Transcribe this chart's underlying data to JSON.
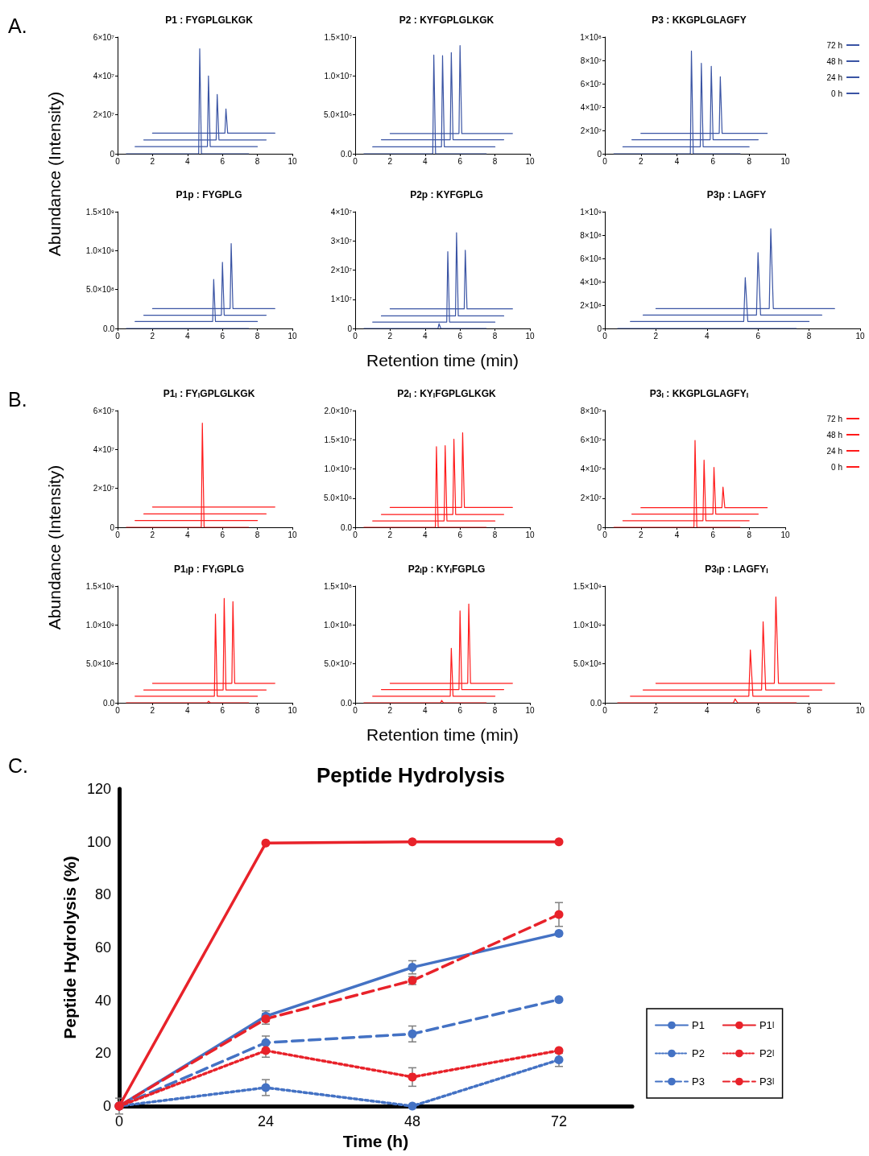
{
  "chart_data": [
    {
      "type": "line",
      "title": "P1 : FYGPLGLKGK",
      "ylabel": "Abundance (Intensity)",
      "annotations": [
        "A."
      ],
      "xlim": [
        0,
        10
      ],
      "xticks": [
        0,
        2,
        4,
        6,
        8,
        10
      ],
      "ylim": [
        0,
        60000000.0
      ],
      "yticks": [
        0,
        {
          "value": 20000000.0,
          "label": "2×10⁷"
        },
        {
          "value": 40000000.0,
          "label": "4×10⁷"
        },
        {
          "value": 60000000.0,
          "label": "6×10⁷"
        }
      ],
      "grid": false,
      "legend": false,
      "marker": "none",
      "line_style": "solid",
      "series": [
        {
          "color": "#3a54a4",
          "x": [
            0.5,
            4.64,
            4.7,
            4.8,
            7.5
          ],
          "values": [
            0,
            0,
            54000000.0,
            0,
            0
          ]
        },
        {
          "color": "#3a54a4",
          "x": [
            1,
            5.14,
            5.2,
            5.3,
            8
          ],
          "values": [
            3700000.0,
            3700000.0,
            40000000.0,
            3700000.0,
            3700000.0
          ]
        },
        {
          "color": "#3a54a4",
          "x": [
            1.5,
            5.64,
            5.7,
            5.8,
            8.5
          ],
          "values": [
            7100000.0,
            7100000.0,
            30500000.0,
            7100000.0,
            7100000.0
          ]
        },
        {
          "color": "#3a54a4",
          "x": [
            2,
            6.14,
            6.2,
            6.3,
            9
          ],
          "values": [
            10600000.0,
            10600000.0,
            23000000.0,
            10600000.0,
            10600000.0
          ]
        }
      ]
    },
    {
      "type": "line",
      "title": "P2 : KYFGPLGLKGK",
      "xlim": [
        0,
        10
      ],
      "xticks": [
        0,
        2,
        4,
        6,
        8,
        10
      ],
      "ylim": [
        0,
        15000000.0
      ],
      "yticks": [
        {
          "value": 0,
          "label": "0.0"
        },
        {
          "value": 5000000.0,
          "label": "5.0×10⁶"
        },
        {
          "value": 10000000.0,
          "label": "1.0×10⁷"
        },
        {
          "value": 15000000.0,
          "label": "1.5×10⁷"
        }
      ],
      "grid": false,
      "legend": false,
      "marker": "none",
      "line_style": "solid",
      "series": [
        {
          "color": "#3a54a4",
          "x": [
            0.5,
            4.44,
            4.5,
            4.6,
            7.5
          ],
          "values": [
            0,
            0,
            12700000.0,
            0,
            0
          ]
        },
        {
          "color": "#3a54a4",
          "x": [
            1,
            4.94,
            5,
            5.1,
            8
          ],
          "values": [
            900000.0,
            900000.0,
            12600000.0,
            900000.0,
            900000.0
          ]
        },
        {
          "color": "#3a54a4",
          "x": [
            1.5,
            5.44,
            5.5,
            5.6,
            8.5
          ],
          "values": [
            1800000.0,
            1800000.0,
            13000000.0,
            1800000.0,
            1800000.0
          ]
        },
        {
          "color": "#3a54a4",
          "x": [
            2,
            5.94,
            6,
            6.1,
            9
          ],
          "values": [
            2600000.0,
            2600000.0,
            13900000.0,
            2600000.0,
            2600000.0
          ]
        }
      ]
    },
    {
      "type": "line",
      "title": "P3 : KKGPLGLAGFY",
      "xlim": [
        0,
        10
      ],
      "xticks": [
        0,
        2,
        4,
        6,
        8,
        10
      ],
      "ylim": [
        0,
        100000000.0
      ],
      "yticks": [
        0,
        {
          "value": 20000000.0,
          "label": "2×10⁷"
        },
        {
          "value": 40000000.0,
          "label": "4×10⁷"
        },
        {
          "value": 60000000.0,
          "label": "6×10⁷"
        },
        {
          "value": 80000000.0,
          "label": "8×10⁷"
        },
        {
          "value": 100000000.0,
          "label": "1×10⁸"
        }
      ],
      "grid": false,
      "legend": "right",
      "marker": "none",
      "line_style": "solid",
      "series": [
        {
          "name": "0 h",
          "color": "#3a54a4",
          "x": [
            0.5,
            4.74,
            4.8,
            4.9,
            7.5
          ],
          "values": [
            0,
            0,
            88000000.0,
            0,
            0
          ]
        },
        {
          "name": "24 h",
          "color": "#3a54a4",
          "x": [
            1,
            5.29,
            5.35,
            5.45,
            8
          ],
          "values": [
            6000000.0,
            6000000.0,
            77500000.0,
            6000000.0,
            6000000.0
          ]
        },
        {
          "name": "48 h",
          "color": "#3a54a4",
          "x": [
            1.5,
            5.84,
            5.9,
            6,
            8.5
          ],
          "values": [
            12000000.0,
            12000000.0,
            75000000.0,
            12000000.0,
            12000000.0
          ]
        },
        {
          "name": "72 h",
          "color": "#3a54a4",
          "x": [
            2,
            6.34,
            6.4,
            6.5,
            9
          ],
          "values": [
            17500000.0,
            17500000.0,
            66000000.0,
            17500000.0,
            17500000.0
          ]
        }
      ]
    },
    {
      "type": "line",
      "title": "P1p : FYGPLG",
      "xlim": [
        0,
        10
      ],
      "xticks": [
        0,
        2,
        4,
        6,
        8,
        10
      ],
      "ylim": [
        0,
        1500000000.0
      ],
      "yticks": [
        {
          "value": 0,
          "label": "0.0"
        },
        {
          "value": 500000000.0,
          "label": "5.0×10⁸"
        },
        {
          "value": 1000000000.0,
          "label": "1.0×10⁹"
        },
        {
          "value": 1500000000.0,
          "label": "1.5×10⁹"
        }
      ],
      "grid": false,
      "legend": false,
      "marker": "none",
      "line_style": "solid",
      "series": [
        {
          "color": "#3a54a4",
          "x": [
            0.5,
            7.5
          ],
          "values": [
            0,
            0
          ]
        },
        {
          "color": "#3a54a4",
          "x": [
            1,
            5.44,
            5.5,
            5.6,
            8
          ],
          "values": [
            90000000.0,
            90000000.0,
            630000000.0,
            90000000.0,
            90000000.0
          ]
        },
        {
          "color": "#3a54a4",
          "x": [
            1.5,
            5.94,
            6,
            6.1,
            8.5
          ],
          "values": [
            170000000.0,
            170000000.0,
            850000000.0,
            170000000.0,
            170000000.0
          ]
        },
        {
          "color": "#3a54a4",
          "x": [
            2,
            6.44,
            6.5,
            6.6,
            9
          ],
          "values": [
            255000000.0,
            255000000.0,
            1090000000.0,
            255000000.0,
            255000000.0
          ]
        }
      ]
    },
    {
      "type": "line",
      "title": "P2p : KYFGPLG",
      "xlabel": "Retention time (min)",
      "xlim": [
        0,
        10
      ],
      "xticks": [
        0,
        2,
        4,
        6,
        8,
        10
      ],
      "ylim": [
        0,
        40000000.0
      ],
      "yticks": [
        0,
        {
          "value": 10000000.0,
          "label": "1×10⁷"
        },
        {
          "value": 20000000.0,
          "label": "2×10⁷"
        },
        {
          "value": 30000000.0,
          "label": "3×10⁷"
        },
        {
          "value": 40000000.0,
          "label": "4×10⁷"
        }
      ],
      "grid": false,
      "legend": false,
      "marker": "none",
      "line_style": "solid",
      "series": [
        {
          "color": "#3a54a4",
          "x": [
            0.5,
            4.74,
            4.8,
            4.9,
            7.5
          ],
          "values": [
            0,
            0,
            1600000.0,
            0,
            0
          ]
        },
        {
          "color": "#3a54a4",
          "x": [
            1,
            5.24,
            5.3,
            5.4,
            8
          ],
          "values": [
            2200000.0,
            2200000.0,
            26300000.0,
            2200000.0,
            2200000.0
          ]
        },
        {
          "color": "#3a54a4",
          "x": [
            1.5,
            5.74,
            5.8,
            5.9,
            8.5
          ],
          "values": [
            4300000.0,
            4300000.0,
            32800000.0,
            4300000.0,
            4300000.0
          ]
        },
        {
          "color": "#3a54a4",
          "x": [
            2,
            6.24,
            6.3,
            6.4,
            9
          ],
          "values": [
            6700000.0,
            6700000.0,
            26800000.0,
            6700000.0,
            6700000.0
          ]
        }
      ]
    },
    {
      "type": "line",
      "title": "P3p : LAGFY",
      "xlim": [
        0,
        10
      ],
      "xticks": [
        0,
        2,
        4,
        6,
        8,
        10
      ],
      "ylim": [
        0,
        1000000000.0
      ],
      "yticks": [
        0,
        {
          "value": 200000000.0,
          "label": "2×10⁸"
        },
        {
          "value": 400000000.0,
          "label": "4×10⁸"
        },
        {
          "value": 600000000.0,
          "label": "6×10⁸"
        },
        {
          "value": 800000000.0,
          "label": "8×10⁸"
        },
        {
          "value": 1000000000.0,
          "label": "1×10⁹"
        }
      ],
      "grid": false,
      "legend": false,
      "marker": "none",
      "line_style": "solid",
      "series": [
        {
          "color": "#3a54a4",
          "x": [
            0.5,
            7.5
          ],
          "values": [
            0,
            0
          ]
        },
        {
          "color": "#3a54a4",
          "x": [
            1,
            5.44,
            5.5,
            5.6,
            8
          ],
          "values": [
            60000000.0,
            60000000.0,
            435000000.0,
            60000000.0,
            60000000.0
          ]
        },
        {
          "color": "#3a54a4",
          "x": [
            1.5,
            5.94,
            6,
            6.1,
            8.5
          ],
          "values": [
            115000000.0,
            115000000.0,
            650000000.0,
            115000000.0,
            115000000.0
          ]
        },
        {
          "color": "#3a54a4",
          "x": [
            2,
            6.44,
            6.5,
            6.6,
            9
          ],
          "values": [
            170000000.0,
            170000000.0,
            855000000.0,
            170000000.0,
            170000000.0
          ]
        }
      ]
    },
    {
      "type": "line",
      "title": "P1$_{I}$ : FY$_{I}$GPLGLKGK",
      "ylabel": "Abundance (Intensity)",
      "annotations": [
        "B."
      ],
      "xlim": [
        0,
        10
      ],
      "xticks": [
        0,
        2,
        4,
        6,
        8,
        10
      ],
      "ylim": [
        0,
        60000000.0
      ],
      "yticks": [
        0,
        {
          "value": 20000000.0,
          "label": "2×10⁷"
        },
        {
          "value": 40000000.0,
          "label": "4×10⁷"
        },
        {
          "value": 60000000.0,
          "label": "6×10⁷"
        }
      ],
      "grid": false,
      "legend": false,
      "marker": "none",
      "line_style": "solid",
      "series": [
        {
          "color": "#ff1a1a",
          "x": [
            0.5,
            4.79,
            4.85,
            4.95,
            7.5
          ],
          "values": [
            0,
            0,
            53500000.0,
            0,
            0
          ]
        },
        {
          "color": "#ff1a1a",
          "x": [
            1,
            8
          ],
          "values": [
            3500000.0,
            3500000.0
          ]
        },
        {
          "color": "#ff1a1a",
          "x": [
            1.5,
            8.5
          ],
          "values": [
            6900000.0,
            6900000.0
          ]
        },
        {
          "color": "#ff1a1a",
          "x": [
            2,
            9
          ],
          "values": [
            10400000.0,
            10400000.0
          ]
        }
      ]
    },
    {
      "type": "line",
      "title": "P2$_{I}$ : KY$_{I}$FGPLGLKGK",
      "xlim": [
        0,
        10
      ],
      "xticks": [
        0,
        2,
        4,
        6,
        8,
        10
      ],
      "ylim": [
        0,
        20000000.0
      ],
      "yticks": [
        {
          "value": 0,
          "label": "0.0"
        },
        {
          "value": 5000000.0,
          "label": "5.0×10⁶"
        },
        {
          "value": 10000000.0,
          "label": "1.0×10⁷"
        },
        {
          "value": 15000000.0,
          "label": "1.5×10⁷"
        },
        {
          "value": 20000000.0,
          "label": "2.0×10⁷"
        }
      ],
      "grid": false,
      "legend": false,
      "marker": "none",
      "line_style": "solid",
      "series": [
        {
          "color": "#ff1a1a",
          "x": [
            0.5,
            4.59,
            4.65,
            4.75,
            7.5
          ],
          "values": [
            0,
            0,
            13800000.0,
            0,
            0
          ]
        },
        {
          "color": "#ff1a1a",
          "x": [
            1,
            5.09,
            5.15,
            5.25,
            8
          ],
          "values": [
            1100000.0,
            1100000.0,
            14000000.0,
            1100000.0,
            1100000.0
          ]
        },
        {
          "color": "#ff1a1a",
          "x": [
            1.5,
            5.59,
            5.65,
            5.75,
            8.5
          ],
          "values": [
            2200000.0,
            2200000.0,
            15100000.0,
            2200000.0,
            2200000.0
          ]
        },
        {
          "color": "#ff1a1a",
          "x": [
            2,
            6.09,
            6.15,
            6.25,
            9
          ],
          "values": [
            3400000.0,
            3400000.0,
            16200000.0,
            3400000.0,
            3400000.0
          ]
        }
      ]
    },
    {
      "type": "line",
      "title": "P3$_{I}$ : KKGPLGLAGFY$_{I}$",
      "xlim": [
        0,
        10
      ],
      "xticks": [
        0,
        2,
        4,
        6,
        8,
        10
      ],
      "ylim": [
        0,
        80000000.0
      ],
      "yticks": [
        0,
        {
          "value": 20000000.0,
          "label": "2×10⁷"
        },
        {
          "value": 40000000.0,
          "label": "4×10⁷"
        },
        {
          "value": 60000000.0,
          "label": "6×10⁷"
        },
        {
          "value": 80000000.0,
          "label": "8×10⁷"
        }
      ],
      "grid": false,
      "legend": "right",
      "marker": "none",
      "line_style": "solid",
      "series": [
        {
          "name": "0 h",
          "color": "#ff1a1a",
          "x": [
            0.5,
            4.94,
            5,
            5.1,
            7.5
          ],
          "values": [
            0,
            0,
            59500000.0,
            0,
            0
          ]
        },
        {
          "name": "24 h",
          "color": "#ff1a1a",
          "x": [
            1,
            5.44,
            5.5,
            5.6,
            8
          ],
          "values": [
            4500000.0,
            4500000.0,
            46000000.0,
            4500000.0,
            4500000.0
          ]
        },
        {
          "name": "48 h",
          "color": "#ff1a1a",
          "x": [
            1.5,
            5.99,
            6.05,
            6.15,
            8.5
          ],
          "values": [
            9000000.0,
            9000000.0,
            41000000.0,
            9000000.0,
            9000000.0
          ]
        },
        {
          "name": "72 h",
          "color": "#ff1a1a",
          "x": [
            2,
            6.49,
            6.55,
            6.65,
            9
          ],
          "values": [
            13400000.0,
            13400000.0,
            27500000.0,
            13400000.0,
            13400000.0
          ]
        }
      ]
    },
    {
      "type": "line",
      "title": "P1$_{I}$p : FY$_{I}$GPLG",
      "xlim": [
        0,
        10
      ],
      "xticks": [
        0,
        2,
        4,
        6,
        8,
        10
      ],
      "ylim": [
        0,
        1500000000.0
      ],
      "yticks": [
        {
          "value": 0,
          "label": "0.0"
        },
        {
          "value": 500000000.0,
          "label": "5.0×10⁸"
        },
        {
          "value": 1000000000.0,
          "label": "1.0×10⁹"
        },
        {
          "value": 1500000000.0,
          "label": "1.5×10⁹"
        }
      ],
      "grid": false,
      "legend": false,
      "marker": "none",
      "line_style": "solid",
      "series": [
        {
          "color": "#ff1a1a",
          "x": [
            0.5,
            5.14,
            5.2,
            5.3,
            7.5
          ],
          "values": [
            0,
            0,
            20000000.0,
            0,
            0
          ]
        },
        {
          "color": "#ff1a1a",
          "x": [
            1,
            5.54,
            5.6,
            5.7,
            8
          ],
          "values": [
            85000000.0,
            85000000.0,
            1140000000.0,
            85000000.0,
            85000000.0
          ]
        },
        {
          "color": "#ff1a1a",
          "x": [
            1.5,
            6.04,
            6.1,
            6.2,
            8.5
          ],
          "values": [
            165000000.0,
            165000000.0,
            1340000000.0,
            165000000.0,
            165000000.0
          ]
        },
        {
          "color": "#ff1a1a",
          "x": [
            2,
            6.54,
            6.6,
            6.7,
            9
          ],
          "values": [
            250000000.0,
            250000000.0,
            1300000000.0,
            250000000.0,
            250000000.0
          ]
        }
      ]
    },
    {
      "type": "line",
      "title": "P2$_{I}$p : KY$_{I}$FGPLG",
      "xlabel": "Retention time (min)",
      "xlim": [
        0,
        10
      ],
      "xticks": [
        0,
        2,
        4,
        6,
        8,
        10
      ],
      "ylim": [
        0,
        150000000.0
      ],
      "yticks": [
        {
          "value": 0,
          "label": "0.0"
        },
        {
          "value": 50000000.0,
          "label": "5.0×10⁷"
        },
        {
          "value": 100000000.0,
          "label": "1.0×10⁸"
        },
        {
          "value": 150000000.0,
          "label": "1.5×10⁸"
        }
      ],
      "grid": false,
      "legend": false,
      "marker": "none",
      "line_style": "solid",
      "series": [
        {
          "color": "#ff1a1a",
          "x": [
            0.5,
            4.89,
            4.95,
            5.05,
            7.5
          ],
          "values": [
            0,
            0,
            3000000.0,
            0,
            0
          ]
        },
        {
          "color": "#ff1a1a",
          "x": [
            1,
            5.44,
            5.5,
            5.6,
            8
          ],
          "values": [
            8500000.0,
            8500000.0,
            70000000.0,
            8500000.0,
            8500000.0
          ]
        },
        {
          "color": "#ff1a1a",
          "x": [
            1.5,
            5.94,
            6,
            6.1,
            8.5
          ],
          "values": [
            17000000.0,
            17000000.0,
            118000000.0,
            17000000.0,
            17000000.0
          ]
        },
        {
          "color": "#ff1a1a",
          "x": [
            2,
            6.44,
            6.5,
            6.6,
            9
          ],
          "values": [
            25000000.0,
            25000000.0,
            127000000.0,
            25000000.0,
            25000000.0
          ]
        }
      ]
    },
    {
      "type": "line",
      "title": "P3$_{I}$p : LAGFY$_{I}$",
      "xlim": [
        0,
        10
      ],
      "xticks": [
        0,
        2,
        4,
        6,
        8,
        10
      ],
      "ylim": [
        0,
        1500000000.0
      ],
      "yticks": [
        {
          "value": 0,
          "label": "0.0"
        },
        {
          "value": 500000000.0,
          "label": "5.0×10⁸"
        },
        {
          "value": 1000000000.0,
          "label": "1.0×10⁹"
        },
        {
          "value": 1500000000.0,
          "label": "1.5×10⁹"
        }
      ],
      "grid": false,
      "legend": false,
      "marker": "none",
      "line_style": "solid",
      "series": [
        {
          "color": "#ff1a1a",
          "x": [
            0.5,
            5.04,
            5.1,
            5.2,
            7.5
          ],
          "values": [
            0,
            0,
            50000000.0,
            0,
            0
          ]
        },
        {
          "color": "#ff1a1a",
          "x": [
            1,
            5.64,
            5.7,
            5.8,
            8
          ],
          "values": [
            85000000.0,
            85000000.0,
            680000000.0,
            85000000.0,
            85000000.0
          ]
        },
        {
          "color": "#ff1a1a",
          "x": [
            1.5,
            6.14,
            6.2,
            6.3,
            8.5
          ],
          "values": [
            165000000.0,
            165000000.0,
            1040000000.0,
            165000000.0,
            165000000.0
          ]
        },
        {
          "color": "#ff1a1a",
          "x": [
            2,
            6.64,
            6.7,
            6.8,
            9
          ],
          "values": [
            250000000.0,
            250000000.0,
            1360000000.0,
            250000000.0,
            250000000.0
          ]
        }
      ]
    },
    {
      "type": "line",
      "title": "Peptide Hydrolysis",
      "xlabel": "Time (h)",
      "ylabel": "Peptide Hydrolysis (%)",
      "annotations": [
        "C."
      ],
      "x": [
        0,
        24,
        48,
        72
      ],
      "xlim": [
        0,
        84
      ],
      "xticks": [
        0,
        24,
        48,
        72
      ],
      "ylim": [
        0,
        120
      ],
      "yticks": [
        0,
        20,
        40,
        60,
        80,
        100,
        120
      ],
      "grid": false,
      "legend": "bottom right",
      "marker": "circle",
      "series": [
        {
          "name": "P1",
          "color": "#4472c4",
          "line_style": "solid",
          "values": [
            0,
            34,
            52.5,
            65.3
          ],
          "errors": [
            3,
            2,
            2.5,
            null
          ]
        },
        {
          "name": "P2",
          "color": "#4472c4",
          "line_style": "dotted",
          "values": [
            0,
            7,
            0,
            17.5
          ],
          "errors": [
            null,
            3,
            null,
            2.5
          ]
        },
        {
          "name": "P3",
          "color": "#4472c4",
          "line_style": "dashed",
          "values": [
            0,
            24,
            27.3,
            40.3
          ],
          "errors": [
            null,
            2.5,
            3,
            null
          ]
        },
        {
          "name": "P1$_{I}$",
          "color": "#e8222a",
          "line_style": "solid",
          "values": [
            0,
            99.5,
            100,
            100
          ]
        },
        {
          "name": "P2$_{I}$",
          "color": "#e8222a",
          "line_style": "dotted",
          "values": [
            0,
            21,
            11,
            21
          ],
          "errors": [
            null,
            2.5,
            3.5,
            null
          ]
        },
        {
          "name": "P3$_{I}$",
          "color": "#e8222a",
          "line_style": "dashed",
          "values": [
            0,
            33,
            47.5,
            72.5
          ],
          "errors": [
            null,
            2,
            1.5,
            4.5
          ]
        }
      ]
    }
  ]
}
